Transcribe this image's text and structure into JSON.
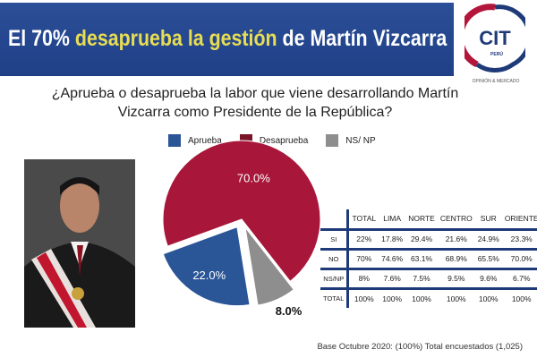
{
  "header": {
    "title_pre": "El 70% ",
    "title_highlight": "desaprueba la gestión",
    "title_post": " de Martín Vizcarra"
  },
  "logo": {
    "text": "CIT",
    "country": "PERÚ",
    "tagline": "OPINIÓN & MERCADO"
  },
  "question": "¿Aprueba o desaprueba la labor que viene desarrollando Martín Vizcarra como Presidente de la República?",
  "chart_data": {
    "type": "pie",
    "categories": [
      "Aprueba",
      "Desaprueba",
      "NS/ NP"
    ],
    "values": [
      22.0,
      70.0,
      8.0
    ],
    "labels": [
      "22.0%",
      "70.0%",
      "8.0%"
    ],
    "colors": [
      "#2a5597",
      "#a8163a",
      "#8e8e8e"
    ],
    "legend": "top"
  },
  "table": {
    "headers": [
      "TOTAL",
      "LIMA",
      "NORTE",
      "CENTRO",
      "SUR",
      "ORIENTE"
    ],
    "rows": [
      {
        "label": "SI",
        "values": [
          "22%",
          "17.8%",
          "29.4%",
          "21.6%",
          "24.9%",
          "23.3%"
        ]
      },
      {
        "label": "NO",
        "values": [
          "70%",
          "74.6%",
          "63.1%",
          "68.9%",
          "65.5%",
          "70.0%"
        ]
      },
      {
        "label": "NS/NP",
        "values": [
          "8%",
          "7.6%",
          "7.5%",
          "9.5%",
          "9.6%",
          "6.7%"
        ]
      },
      {
        "label": "TOTAL",
        "values": [
          "100%",
          "100%",
          "100%",
          "100%",
          "100%",
          "100%"
        ]
      }
    ]
  },
  "footer": "Base Octubre 2020: (100%) Total encuestados (1,025)"
}
